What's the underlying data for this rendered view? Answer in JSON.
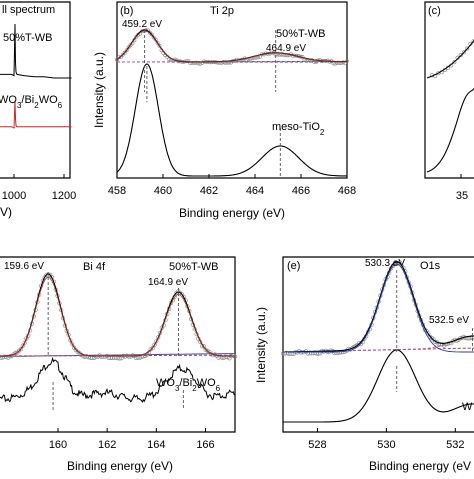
{
  "colors": {
    "marker": "#808080",
    "fit": "#000000",
    "envelope": "#1f3fbf",
    "baseline_blue": "#3a4fc8",
    "baseline_red": "#b83a2e",
    "component_purple": "#a35ab5",
    "survey_red": "#d62020"
  },
  "chart_data": [
    {
      "id": "a",
      "type": "line",
      "partial": true,
      "texts": {
        "title_fragment": "ll spectrum",
        "sample_top": "50%T-WB",
        "sample_bottom": "WO3/Bi2WO6",
        "xtick_1000": "1000",
        "xtick_1200": "1200",
        "xlabel_fragment": "V)"
      },
      "xlim": [
        920,
        1230
      ],
      "series": [
        {
          "name": "50%T-WB",
          "color": "#000000",
          "x": [
            920,
            990,
            1000,
            1004,
            1006,
            1008,
            1012,
            1040,
            1080,
            1120,
            1160,
            1200,
            1230
          ],
          "y": [
            0.5,
            0.5,
            0.49,
            0.92,
            0.6,
            0.52,
            0.5,
            0.49,
            0.48,
            0.48,
            0.47,
            0.47,
            0.47
          ]
        },
        {
          "name": "WO3/Bi2WO6",
          "color": "#d62020",
          "x": [
            920,
            990,
            1000,
            1004,
            1006,
            1008,
            1012,
            1040,
            1080,
            1120,
            1160,
            1200,
            1230
          ],
          "y": [
            0.12,
            0.12,
            0.11,
            0.32,
            0.18,
            0.13,
            0.12,
            0.12,
            0.12,
            0.12,
            0.12,
            0.12,
            0.12
          ]
        }
      ]
    },
    {
      "id": "b",
      "type": "line",
      "texts": {
        "panel": "(b)",
        "title": "Ti 2p",
        "sample_top": "50%T-WB",
        "sample_bottom": "meso-TiO2",
        "peak1": "459.2 eV",
        "peak2": "464.9 eV",
        "xlabel": "Binding energy (eV)",
        "ylabel": "Intensity (a.u.)"
      },
      "xlim": [
        458,
        468
      ],
      "xticks": [
        458,
        460,
        462,
        464,
        466,
        468
      ],
      "peaks_top": [
        459.2,
        464.9
      ],
      "peaks_bottom": [
        459.3,
        465.1
      ],
      "notes": "Top: fitted Ti 2p spectrum of 50%T-WB with components; bottom: meso-TiO2."
    },
    {
      "id": "c",
      "type": "line",
      "partial": true,
      "texts": {
        "panel": "(c)",
        "xtick_fragment": "35"
      }
    },
    {
      "id": "d",
      "type": "line",
      "partial": true,
      "texts": {
        "title": "Bi 4f",
        "sample_top": "50%T-WB",
        "sample_bottom": "WO3/Bi2WO6",
        "peak1": "159.6 eV",
        "peak2": "164.9 eV",
        "xlabel": "Binding energy (eV)"
      },
      "xlim": [
        157.6,
        167.2
      ],
      "xticks": [
        160,
        162,
        164,
        166
      ],
      "peaks_top": [
        159.6,
        164.9
      ],
      "peaks_bottom": [
        159.8,
        165.1
      ]
    },
    {
      "id": "e",
      "type": "line",
      "partial": true,
      "texts": {
        "panel": "(e)",
        "title": "O1s",
        "peak1": "530.3 eV",
        "peak2": "532.5 eV",
        "sample_bottom_fragment": "W",
        "xlabel": "Binding energy (eV",
        "ylabel": "Intensity (a.u.)"
      },
      "xlim": [
        527.0,
        532.6
      ],
      "xticks": [
        528,
        530,
        532
      ],
      "peaks_top": [
        530.3,
        532.5
      ],
      "peaks_bottom": [
        530.3
      ]
    }
  ]
}
